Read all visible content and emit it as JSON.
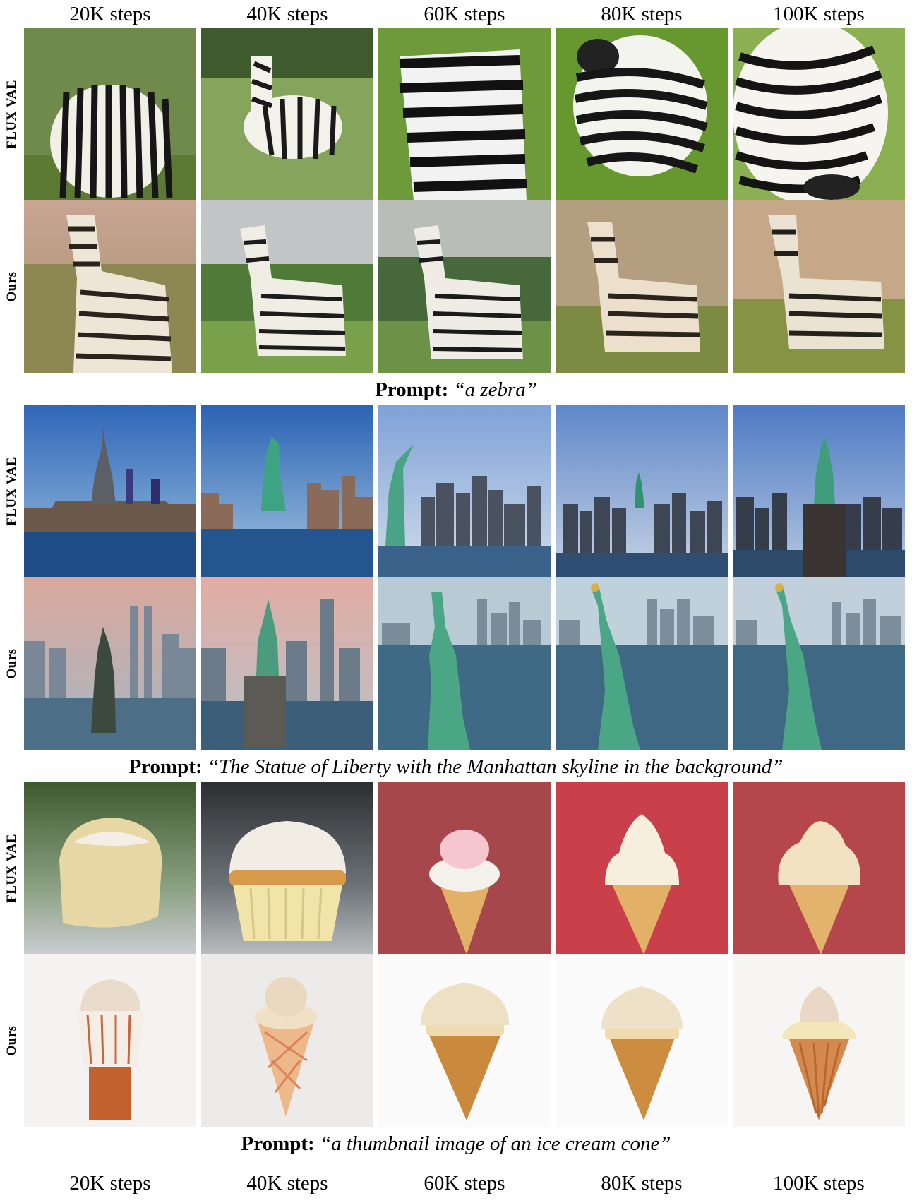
{
  "steps": [
    "20K steps",
    "40K steps",
    "60K steps",
    "80K steps",
    "100K steps"
  ],
  "row_labels": {
    "flux": "FLUX VAE",
    "ours": "Ours"
  },
  "prompt_label": "Prompt:",
  "groups": [
    {
      "id": "zebra",
      "prompt": "“a zebra”"
    },
    {
      "id": "liberty",
      "prompt": "“The Statue of Liberty with the Manhattan skyline in the background”"
    },
    {
      "id": "icecream",
      "prompt": "“a thumbnail image of an ice cream cone”"
    }
  ]
}
